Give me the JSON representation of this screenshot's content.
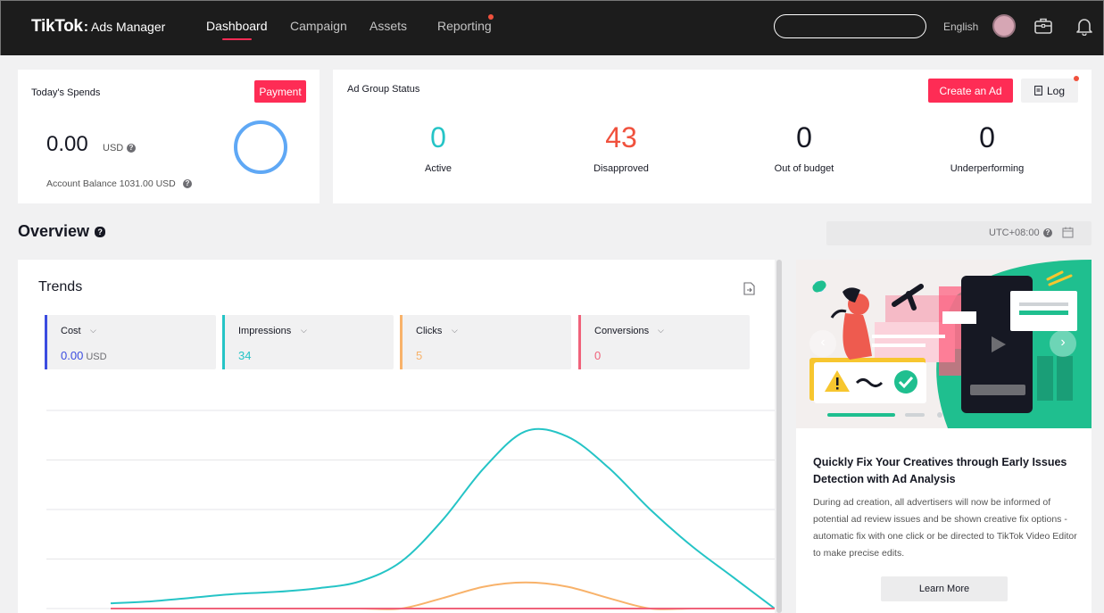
{
  "nav": {
    "logo_main": "TikTok",
    "logo_sep": ":",
    "logo_sub": "Ads Manager",
    "links": [
      "Dashboard",
      "Campaign",
      "Assets",
      "Reporting"
    ],
    "language": "English",
    "search_placeholder": ""
  },
  "spends": {
    "title": "Today's Spends",
    "payment_label": "Payment",
    "amount": "0.00",
    "currency": "USD",
    "balance": "Account Balance 1031.00 USD"
  },
  "ad_group_status": {
    "title": "Ad Group Status",
    "create_label": "Create an Ad",
    "log_label": "Log",
    "stats": [
      {
        "value": "0",
        "label": "Active",
        "color": "#25c4c6"
      },
      {
        "value": "43",
        "label": "Disapproved",
        "color": "#f0513d"
      },
      {
        "value": "0",
        "label": "Out of budget",
        "color": "#161823"
      },
      {
        "value": "0",
        "label": "Underperforming",
        "color": "#161823"
      }
    ]
  },
  "overview": {
    "title": "Overview",
    "timezone": "UTC+08:00"
  },
  "trends": {
    "title": "Trends",
    "metrics": [
      {
        "name": "Cost",
        "value": "0.00",
        "unit": "USD",
        "color": "#3b4ce0"
      },
      {
        "name": "Impressions",
        "value": "34",
        "unit": "",
        "color": "#25c4c6"
      },
      {
        "name": "Clicks",
        "value": "5",
        "unit": "",
        "color": "#f8b26a"
      },
      {
        "name": "Conversions",
        "value": "0",
        "unit": "",
        "color": "#f0627a"
      }
    ]
  },
  "chart_data": {
    "type": "line",
    "series": [
      {
        "color": "#25c4c6",
        "values": [
          1,
          1.4,
          2.1,
          2.8,
          3.2,
          3.9,
          5.2,
          9,
          17,
          27,
          34,
          33,
          27,
          19,
          12,
          6,
          0
        ]
      },
      {
        "color": "#f8b26a",
        "values": [
          0,
          0,
          0,
          0,
          0,
          0,
          0,
          0,
          2,
          4.2,
          5,
          4.2,
          2,
          0,
          0,
          0,
          0
        ]
      },
      {
        "color": "#f0627a",
        "values": [
          0,
          0,
          0,
          0,
          0,
          0,
          0,
          0,
          0,
          0,
          0,
          0,
          0,
          0,
          0,
          0,
          0
        ]
      }
    ]
  },
  "promo": {
    "title": "Quickly Fix Your Creatives through Early Issues Detection with Ad Analysis",
    "body": "During ad creation, all advertisers will now be informed of potential ad review issues and be shown creative fix options - automatic fix with one click or be directed to TikTok Video Editor to make precise edits.",
    "cta_label": "Learn More",
    "banner_bg": "#1fbf8f",
    "banner_accent": "#fe2c55"
  }
}
